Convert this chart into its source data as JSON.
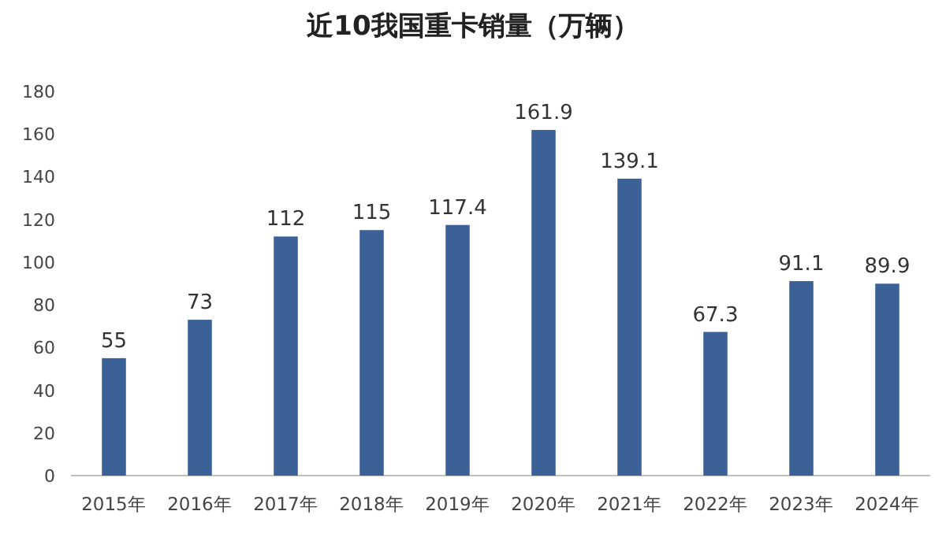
{
  "chart_data": {
    "type": "bar",
    "title": "近10我国重卡销量（万辆）",
    "categories": [
      "2015年",
      "2016年",
      "2017年",
      "2018年",
      "2019年",
      "2020年",
      "2021年",
      "2022年",
      "2023年",
      "2024年"
    ],
    "values": [
      55,
      73,
      112,
      115,
      117.4,
      161.9,
      139.1,
      67.3,
      91.1,
      89.9
    ],
    "color": "#3b6196",
    "ylim": [
      0,
      180
    ],
    "yticks": [
      0,
      20,
      40,
      60,
      80,
      100,
      120,
      140,
      160,
      180
    ],
    "data_labels": true,
    "grid": false
  }
}
